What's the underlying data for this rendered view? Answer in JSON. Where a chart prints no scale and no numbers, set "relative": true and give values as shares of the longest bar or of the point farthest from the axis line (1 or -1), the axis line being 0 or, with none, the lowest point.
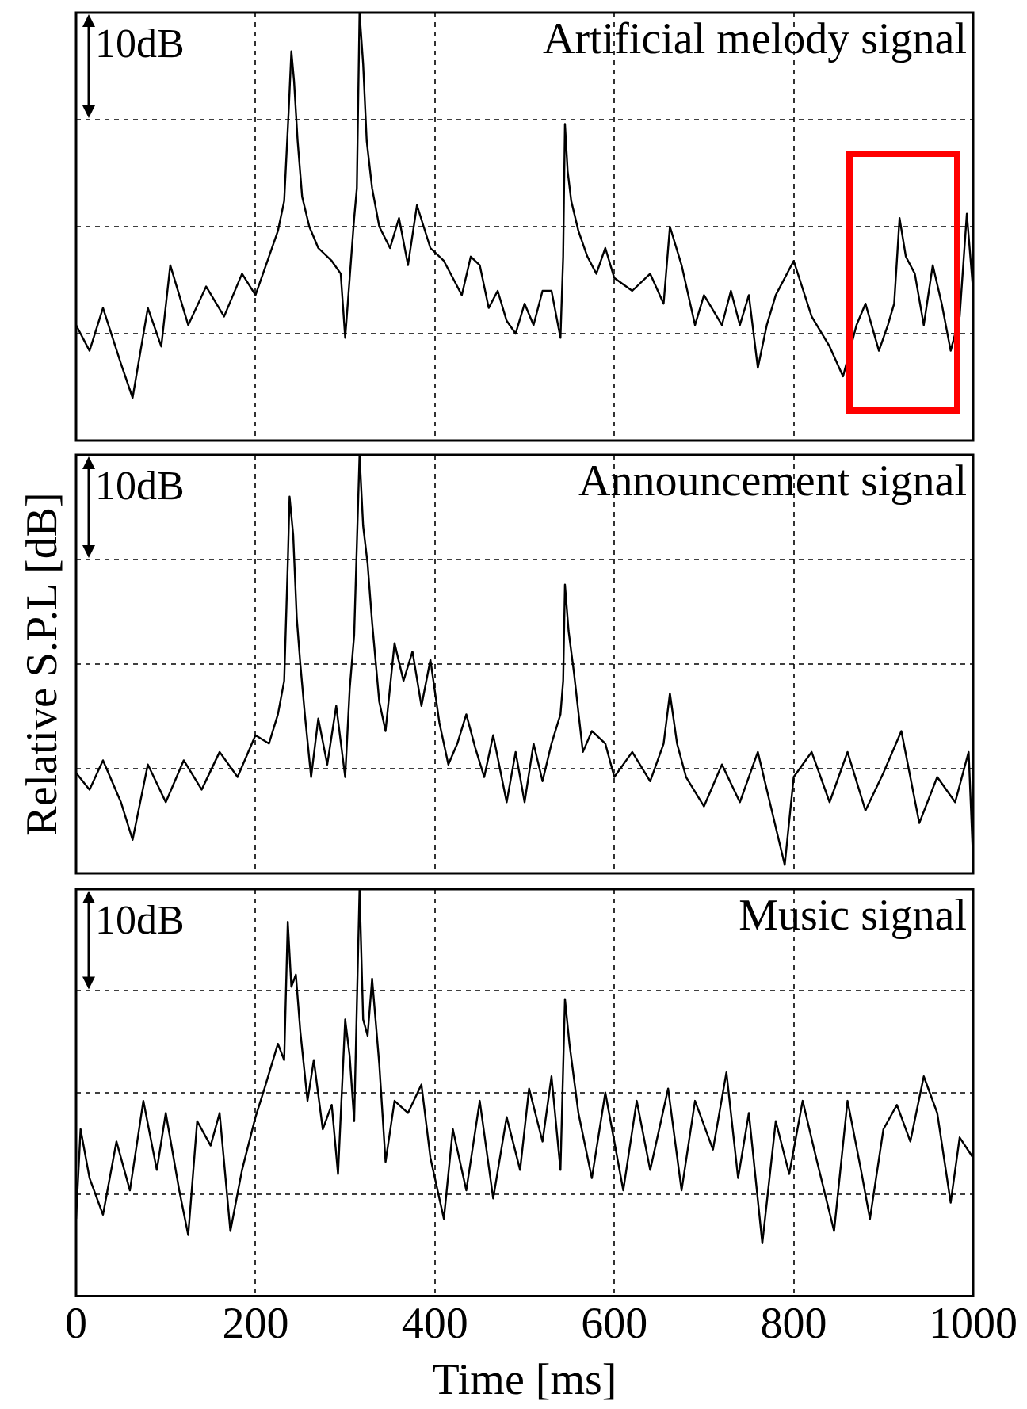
{
  "chart_data": [
    {
      "type": "line",
      "title": "Artificial melody signal",
      "annotations": [
        "10dB"
      ],
      "relative": true,
      "grid": true,
      "marker": "none",
      "tick_labels": false,
      "xlim": [
        0,
        1000
      ],
      "xticks": [
        0,
        200,
        400,
        600,
        800,
        1000
      ],
      "x": [
        0,
        15,
        30,
        50,
        63,
        80,
        95,
        105,
        125,
        145,
        165,
        185,
        200,
        215,
        225,
        232,
        237,
        240,
        243,
        247,
        252,
        260,
        270,
        285,
        295,
        300,
        305,
        310,
        313,
        316,
        320,
        324,
        330,
        338,
        350,
        360,
        370,
        380,
        395,
        410,
        420,
        430,
        440,
        450,
        460,
        470,
        480,
        490,
        500,
        510,
        520,
        530,
        540,
        543,
        545,
        548,
        552,
        560,
        570,
        580,
        590,
        600,
        620,
        640,
        655,
        662,
        675,
        690,
        700,
        720,
        730,
        740,
        750,
        760,
        770,
        780,
        800,
        820,
        840,
        855,
        870,
        880,
        895,
        905,
        912,
        918,
        925,
        935,
        945,
        955,
        965,
        975,
        985,
        993,
        1000
      ],
      "series": [
        {
          "color": "#000000",
          "values": [
            0.27,
            0.21,
            0.31,
            0.18,
            0.1,
            0.31,
            0.22,
            0.41,
            0.27,
            0.36,
            0.29,
            0.39,
            0.34,
            0.43,
            0.49,
            0.56,
            0.77,
            0.91,
            0.84,
            0.7,
            0.57,
            0.5,
            0.45,
            0.42,
            0.39,
            0.24,
            0.38,
            0.52,
            0.59,
            1.0,
            0.88,
            0.7,
            0.59,
            0.5,
            0.45,
            0.52,
            0.41,
            0.55,
            0.45,
            0.42,
            0.38,
            0.34,
            0.43,
            0.41,
            0.31,
            0.35,
            0.28,
            0.25,
            0.32,
            0.27,
            0.35,
            0.35,
            0.24,
            0.43,
            0.74,
            0.63,
            0.56,
            0.49,
            0.43,
            0.39,
            0.45,
            0.38,
            0.35,
            0.39,
            0.32,
            0.5,
            0.41,
            0.27,
            0.34,
            0.27,
            0.35,
            0.27,
            0.34,
            0.17,
            0.27,
            0.34,
            0.42,
            0.29,
            0.22,
            0.15,
            0.27,
            0.32,
            0.21,
            0.27,
            0.32,
            0.52,
            0.43,
            0.39,
            0.27,
            0.41,
            0.32,
            0.21,
            0.29,
            0.53,
            0.35
          ]
        }
      ]
    },
    {
      "type": "line",
      "title": "Announcement signal",
      "ylabel": "Relative S.P.L [dB]",
      "annotations": [
        "10dB"
      ],
      "relative": true,
      "grid": true,
      "marker": "none",
      "tick_labels": false,
      "xlim": [
        0,
        1000
      ],
      "xticks": [
        0,
        200,
        400,
        600,
        800,
        1000
      ],
      "x": [
        0,
        15,
        30,
        50,
        63,
        80,
        100,
        120,
        140,
        160,
        180,
        200,
        215,
        225,
        232,
        236,
        238,
        242,
        246,
        250,
        255,
        262,
        270,
        280,
        290,
        300,
        305,
        310,
        316,
        320,
        325,
        330,
        338,
        345,
        355,
        365,
        375,
        385,
        395,
        405,
        415,
        425,
        435,
        445,
        455,
        465,
        480,
        490,
        500,
        510,
        520,
        530,
        540,
        543,
        545,
        549,
        555,
        565,
        575,
        590,
        600,
        620,
        640,
        655,
        662,
        670,
        680,
        700,
        720,
        740,
        760,
        790,
        800,
        820,
        840,
        860,
        880,
        900,
        920,
        940,
        960,
        980,
        995,
        1000
      ],
      "series": [
        {
          "color": "#000000",
          "values": [
            0.24,
            0.2,
            0.27,
            0.17,
            0.08,
            0.26,
            0.17,
            0.27,
            0.2,
            0.29,
            0.23,
            0.33,
            0.31,
            0.38,
            0.46,
            0.74,
            0.9,
            0.81,
            0.61,
            0.5,
            0.38,
            0.23,
            0.37,
            0.26,
            0.4,
            0.23,
            0.44,
            0.57,
            1.0,
            0.83,
            0.74,
            0.6,
            0.41,
            0.34,
            0.55,
            0.46,
            0.53,
            0.4,
            0.51,
            0.36,
            0.26,
            0.31,
            0.38,
            0.3,
            0.23,
            0.33,
            0.17,
            0.29,
            0.17,
            0.31,
            0.22,
            0.31,
            0.38,
            0.46,
            0.69,
            0.58,
            0.48,
            0.29,
            0.34,
            0.31,
            0.23,
            0.29,
            0.22,
            0.31,
            0.43,
            0.31,
            0.23,
            0.16,
            0.26,
            0.17,
            0.29,
            0.02,
            0.23,
            0.29,
            0.17,
            0.29,
            0.15,
            0.24,
            0.34,
            0.12,
            0.23,
            0.17,
            0.29,
            0.03
          ]
        }
      ]
    },
    {
      "type": "line",
      "title": "Music signal",
      "xlabel": "Time [ms]",
      "annotations": [
        "10dB"
      ],
      "relative": true,
      "grid": true,
      "marker": "none",
      "tick_labels": "x",
      "xlim": [
        0,
        1000
      ],
      "xticks": [
        0,
        200,
        400,
        600,
        800,
        1000
      ],
      "x": [
        0,
        5,
        15,
        30,
        45,
        60,
        75,
        90,
        100,
        115,
        125,
        135,
        150,
        160,
        172,
        185,
        200,
        210,
        225,
        232,
        236,
        240,
        245,
        250,
        258,
        265,
        275,
        285,
        292,
        300,
        305,
        310,
        316,
        320,
        325,
        330,
        338,
        345,
        355,
        370,
        385,
        395,
        410,
        420,
        435,
        450,
        465,
        480,
        495,
        505,
        520,
        530,
        540,
        545,
        550,
        560,
        575,
        590,
        610,
        625,
        640,
        660,
        675,
        690,
        710,
        725,
        738,
        750,
        765,
        780,
        795,
        810,
        825,
        845,
        860,
        875,
        885,
        900,
        915,
        930,
        945,
        960,
        975,
        985,
        1000
      ],
      "series": [
        {
          "color": "#000000",
          "values": [
            0.19,
            0.41,
            0.29,
            0.2,
            0.38,
            0.26,
            0.48,
            0.31,
            0.45,
            0.26,
            0.15,
            0.43,
            0.37,
            0.45,
            0.16,
            0.31,
            0.44,
            0.51,
            0.62,
            0.58,
            0.92,
            0.76,
            0.79,
            0.65,
            0.48,
            0.58,
            0.41,
            0.47,
            0.3,
            0.68,
            0.59,
            0.43,
            1.0,
            0.68,
            0.64,
            0.78,
            0.57,
            0.33,
            0.48,
            0.45,
            0.52,
            0.34,
            0.19,
            0.41,
            0.26,
            0.48,
            0.24,
            0.44,
            0.31,
            0.51,
            0.38,
            0.54,
            0.31,
            0.73,
            0.62,
            0.45,
            0.29,
            0.5,
            0.26,
            0.48,
            0.31,
            0.51,
            0.26,
            0.48,
            0.36,
            0.55,
            0.29,
            0.45,
            0.13,
            0.43,
            0.3,
            0.48,
            0.34,
            0.16,
            0.48,
            0.31,
            0.19,
            0.41,
            0.47,
            0.38,
            0.54,
            0.45,
            0.23,
            0.39,
            0.34
          ]
        }
      ]
    }
  ]
}
